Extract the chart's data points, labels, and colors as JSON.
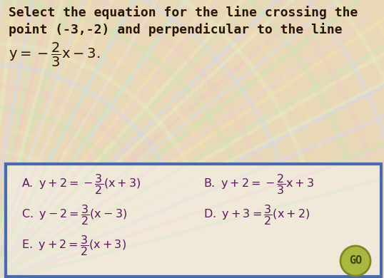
{
  "title_line1": "Select the equation for the line crossing the",
  "title_line2": "point (-3,-2) and perpendicular to the line",
  "bg_color": "#e8d8b8",
  "box_bg_color": "#ede4d0",
  "box_border_color": "#4a6ab0",
  "title_color": "#2a1505",
  "opt_color": "#5a1a5a",
  "go_bg_color": "#a8b840",
  "go_text_color": "#404010",
  "swirl_colors_top": [
    "#c8e8b0",
    "#f0c8c8",
    "#d0d8f0",
    "#e8f0c0",
    "#f8e0b0"
  ],
  "swirl_colors_box": [
    "#c8e8c0",
    "#f0d0d8",
    "#d8e0f0",
    "#e8f0d0"
  ]
}
